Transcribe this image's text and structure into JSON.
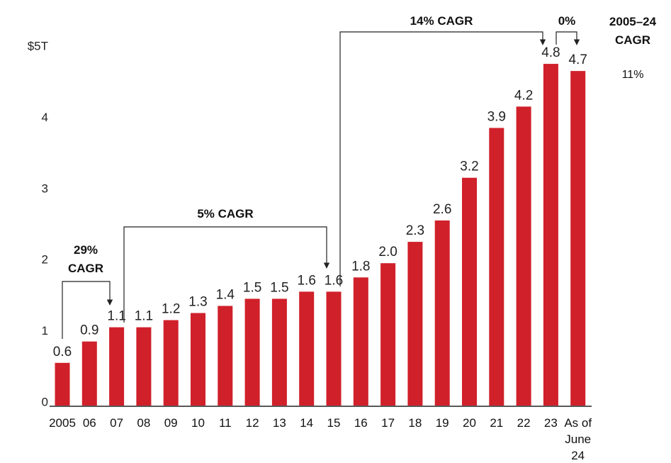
{
  "chart_data": {
    "type": "bar",
    "categories": [
      "2005",
      "06",
      "07",
      "08",
      "09",
      "10",
      "11",
      "12",
      "13",
      "14",
      "15",
      "16",
      "17",
      "18",
      "19",
      "20",
      "21",
      "22",
      "23",
      "As of June 24"
    ],
    "values": [
      0.6,
      0.9,
      1.1,
      1.1,
      1.2,
      1.3,
      1.4,
      1.5,
      1.5,
      1.6,
      1.6,
      1.8,
      2.0,
      2.3,
      2.6,
      3.2,
      3.9,
      4.2,
      4.8,
      4.7
    ],
    "value_labels": [
      "0.6",
      "0.9",
      "1.1",
      "1.1",
      "1.2",
      "1.3",
      "1.4",
      "1.5",
      "1.5",
      "1.6",
      "1.6",
      "1.8",
      "2.0",
      "2.3",
      "2.6",
      "3.2",
      "3.9",
      "4.2",
      "4.8",
      "4.7"
    ],
    "color": "#d0202a",
    "ylim": [
      0,
      5
    ],
    "yticks": [
      0,
      1,
      2,
      3,
      4,
      {
        "value": 5,
        "label": "$5T"
      }
    ],
    "annotations": [
      "29% CAGR",
      "5% CAGR",
      "14% CAGR",
      "0%"
    ],
    "side_note": {
      "title": "2005–24 CAGR",
      "value": "11%"
    }
  }
}
